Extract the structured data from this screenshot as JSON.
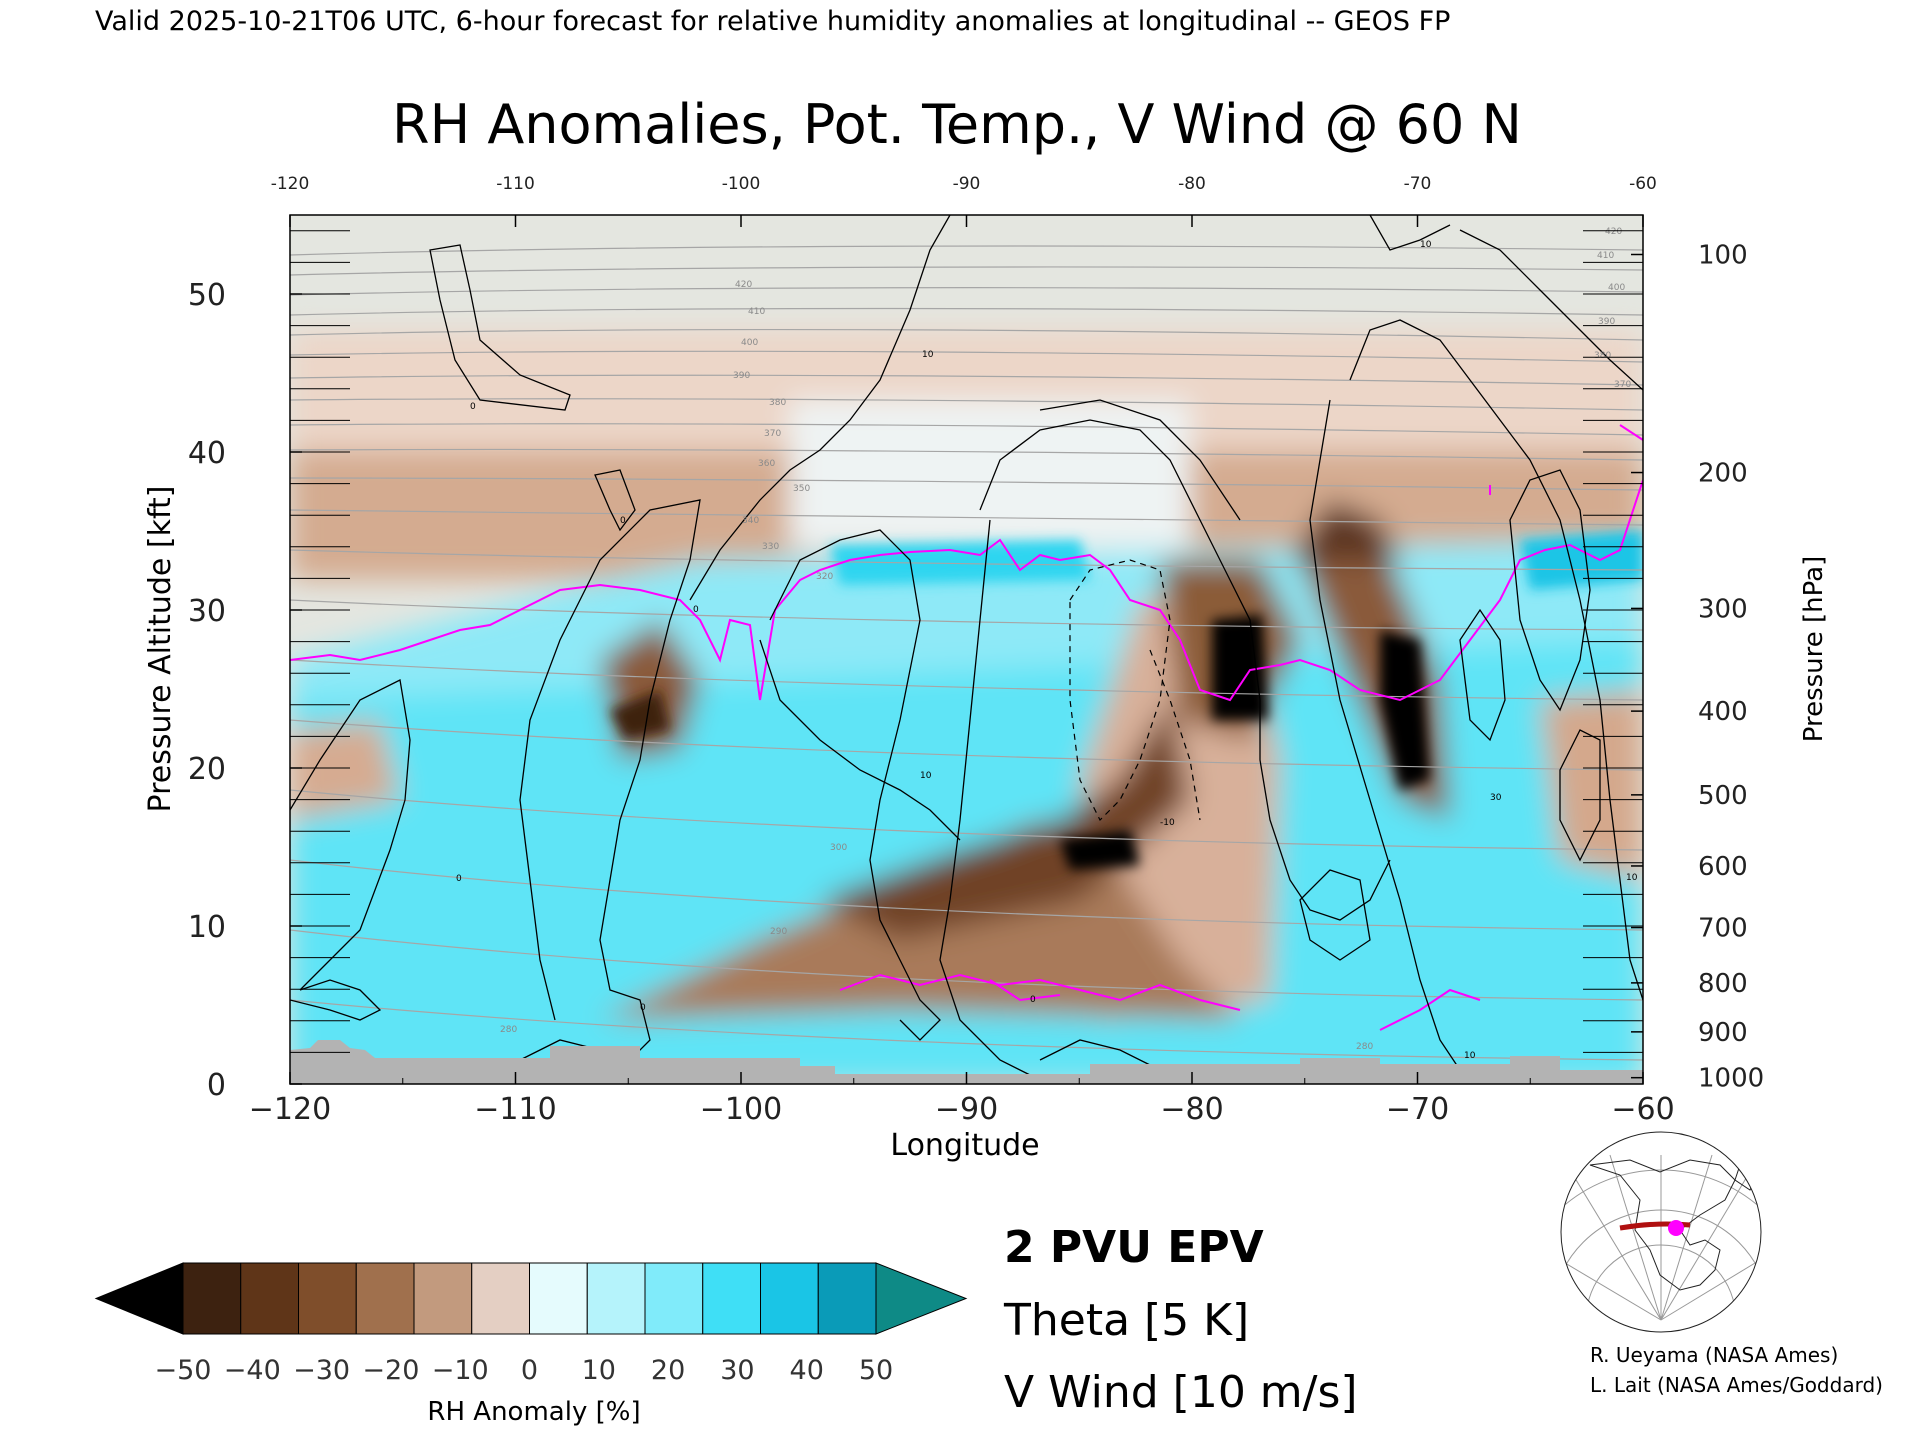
{
  "header": {
    "valid_line": "Valid 2025-10-21T06 UTC, 6-hour forecast for relative humidity anomalies at longitudinal -- GEOS FP",
    "title": "RH Anomalies, Pot. Temp., V Wind @ 60 N"
  },
  "chart_data": {
    "type": "heatmap",
    "title": "RH Anomalies, Pot. Temp., V Wind @ 60 N",
    "xlabel": "Longitude",
    "ylabel": "Pressure Altitude [kft]",
    "y2label": "Pressure [hPa]",
    "xlim": [
      -120,
      -60
    ],
    "ylim": [
      0,
      55
    ],
    "x_ticks": [
      "−120",
      "−110",
      "−100",
      "−90",
      "−80",
      "−70",
      "−60"
    ],
    "x_top_ticks": [
      "-120",
      "-110",
      "-100",
      "-90",
      "-80",
      "-70",
      "-60"
    ],
    "y_ticks": [
      "0",
      "10",
      "20",
      "30",
      "40",
      "50"
    ],
    "pressure_ticks": [
      {
        "label": "100",
        "kft": 52.5
      },
      {
        "label": "200",
        "kft": 38.7
      },
      {
        "label": "300",
        "kft": 30.1
      },
      {
        "label": "400",
        "kft": 23.6
      },
      {
        "label": "500",
        "kft": 18.3
      },
      {
        "label": "600",
        "kft": 13.8
      },
      {
        "label": "700",
        "kft": 9.9
      },
      {
        "label": "800",
        "kft": 6.4
      },
      {
        "label": "900",
        "kft": 3.3
      },
      {
        "label": "1000",
        "kft": 0.4
      }
    ],
    "colorbar": {
      "label": "RH Anomaly [%]",
      "tick_labels": [
        "−50",
        "−40",
        "−30",
        "−20",
        "−10",
        "0",
        "10",
        "20",
        "30",
        "40",
        "50"
      ],
      "colors": [
        "#000000",
        "#3d2210",
        "#5f3518",
        "#7f4e2b",
        "#a0704d",
        "#c29a7e",
        "#e4cfc3",
        "#e5fbfd",
        "#b5f3fb",
        "#80ebfa",
        "#3fdff6",
        "#1ac5e6",
        "#0a9bb8",
        "#0e8a86"
      ]
    },
    "theta_labels": [
      "420",
      "410",
      "400",
      "390",
      "380",
      "370",
      "360",
      "350",
      "340",
      "330",
      "320",
      "300",
      "290",
      "280"
    ],
    "vwind_labels": [
      "0",
      "10",
      "-10",
      "30"
    ],
    "legend": [
      {
        "label": "2 PVU EPV",
        "color": "#ff00ff"
      },
      {
        "label": "Theta [5 K]",
        "color": "#b0b0b0"
      },
      {
        "label": "V Wind [10 m/s]",
        "color": "#000000"
      }
    ]
  },
  "credits": [
    "R. Ueyama (NASA Ames)",
    "L. Lait (NASA Ames/Goddard)"
  ]
}
